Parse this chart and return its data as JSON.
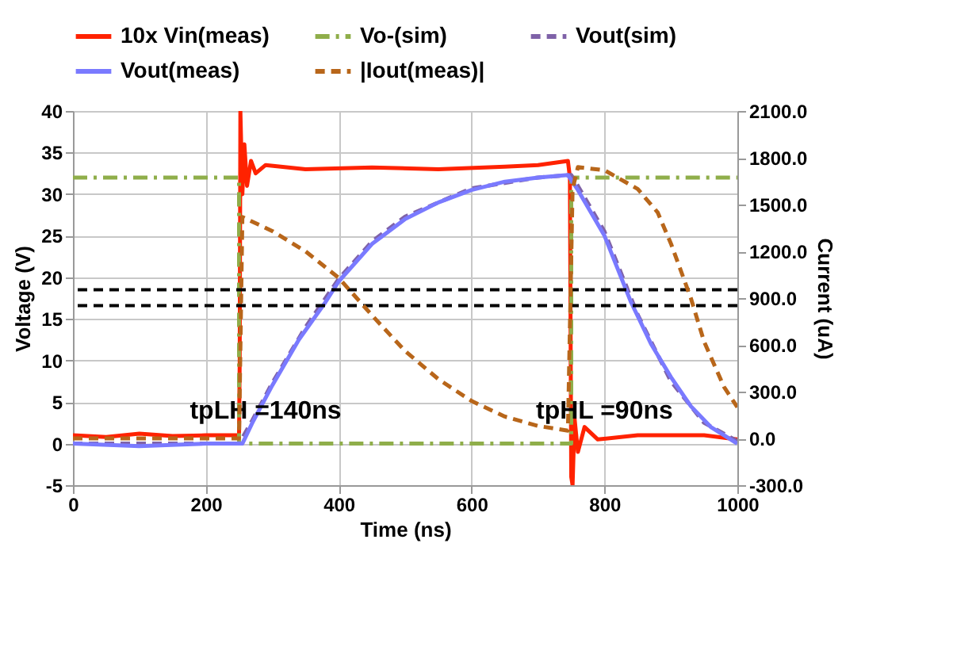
{
  "chart_data": {
    "type": "line",
    "xlabel": "Time (ns)",
    "ylabel": "Voltage (V)",
    "y2label": "Current (uA)",
    "xlim": [
      0,
      1000
    ],
    "xticks": [
      0,
      200,
      400,
      600,
      800,
      1000
    ],
    "ylim": [
      -5,
      40
    ],
    "yticks": [
      -5,
      0,
      5,
      10,
      15,
      20,
      25,
      30,
      35,
      40
    ],
    "y2lim": [
      -300,
      2100
    ],
    "y2ticks": [
      {
        "value": -300,
        "label": "-300.0"
      },
      {
        "value": 0,
        "label": "0.0"
      },
      {
        "value": 300,
        "label": "300.0"
      },
      {
        "value": 600,
        "label": "600.0"
      },
      {
        "value": 900,
        "label": "900.0"
      },
      {
        "value": 1200,
        "label": "1200.0"
      },
      {
        "value": 1500,
        "label": "1500.0"
      },
      {
        "value": 1800,
        "label": "1800.0"
      },
      {
        "value": 2100,
        "label": "2100.0"
      }
    ],
    "grid": true,
    "legend": "top",
    "marker": "none",
    "series": [
      {
        "name": "10x Vin(meas)",
        "color": "#ff2200",
        "line_style": "solid",
        "x": [
          0,
          50,
          100,
          150,
          200,
          250,
          251,
          252,
          255,
          258,
          262,
          268,
          275,
          290,
          350,
          450,
          550,
          650,
          700,
          745,
          748,
          750,
          752,
          755,
          760,
          770,
          790,
          850,
          950,
          1000
        ],
        "values": [
          1,
          0.8,
          1.2,
          0.9,
          1,
          1,
          10,
          40,
          30,
          36,
          31,
          34,
          32.5,
          33.5,
          33,
          33.2,
          33,
          33.3,
          33.5,
          34,
          32,
          -4,
          -5,
          3,
          -1,
          2,
          0.5,
          1,
          1,
          0.5
        ]
      },
      {
        "name": "Vo-(sim)",
        "color": "#8fae4a",
        "line_style": "dashdot",
        "x": [
          0,
          250,
          250,
          750,
          750,
          1000
        ],
        "values": [
          32,
          32,
          0,
          0,
          32,
          32
        ]
      },
      {
        "name": "Vout(sim)",
        "color": "#7f62a8",
        "line_style": "dashed",
        "x": [
          0,
          250,
          270,
          300,
          350,
          400,
          450,
          500,
          600,
          700,
          750,
          760,
          800,
          850,
          900,
          950,
          1000
        ],
        "values": [
          0,
          0,
          2.8,
          7.3,
          14,
          19.8,
          24.3,
          27.3,
          30.7,
          32,
          32.3,
          31,
          25.5,
          15.5,
          7.5,
          2.5,
          0.3
        ]
      },
      {
        "name": "Vout(meas)",
        "color": "#7a7aff",
        "line_style": "solid",
        "x": [
          0,
          100,
          200,
          255,
          270,
          300,
          340,
          380,
          400,
          450,
          500,
          550,
          600,
          650,
          700,
          745,
          760,
          800,
          840,
          870,
          900,
          930,
          960,
          1000
        ],
        "values": [
          0,
          -0.3,
          0,
          0,
          2.5,
          7,
          12.5,
          17,
          19.5,
          24,
          27,
          29,
          30.5,
          31.5,
          32,
          32.3,
          30.5,
          25,
          17,
          12,
          8,
          4.5,
          2,
          0
        ]
      },
      {
        "name": "|Iout(meas)|",
        "color": "#b8661a",
        "line_style": "dashed",
        "axis": "y2",
        "x": [
          0,
          250,
          255,
          300,
          350,
          400,
          450,
          500,
          550,
          600,
          650,
          700,
          745,
          752,
          760,
          800,
          850,
          880,
          900,
          930,
          950,
          980,
          1000
        ],
        "values": [
          0,
          0,
          1420,
          1330,
          1200,
          1030,
          790,
          560,
          380,
          240,
          140,
          80,
          50,
          1600,
          1740,
          1720,
          1600,
          1450,
          1250,
          900,
          620,
          330,
          200
        ]
      }
    ],
    "ref_lines": [
      {
        "axis": "y",
        "value": 18.5,
        "color": "#000000",
        "line_style": "dashed"
      },
      {
        "axis": "y",
        "value": 16.6,
        "color": "#000000",
        "line_style": "dashed"
      }
    ],
    "annotations": [
      "tpLH =140ns",
      "tpHL =90ns"
    ]
  }
}
